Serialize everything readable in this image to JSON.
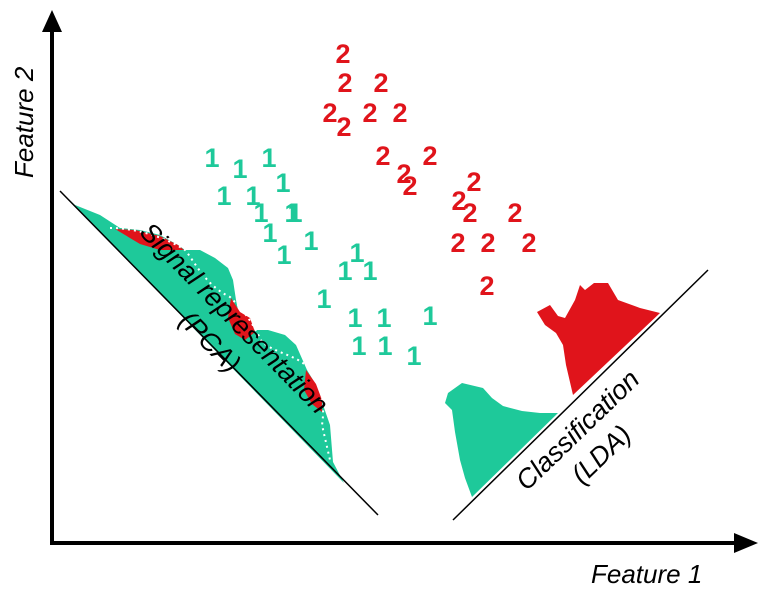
{
  "axes": {
    "x_label": "Feature 1",
    "y_label": "Feature 2"
  },
  "projections": {
    "pca": {
      "line1": "Signal representation",
      "line2": "(PCA)"
    },
    "lda": {
      "line1": "Classification",
      "line2": "(LDA)"
    }
  },
  "classes": {
    "class1": {
      "label": "1",
      "color": "#1ec99a"
    },
    "class2": {
      "label": "2",
      "color": "#e0141b"
    }
  }
}
